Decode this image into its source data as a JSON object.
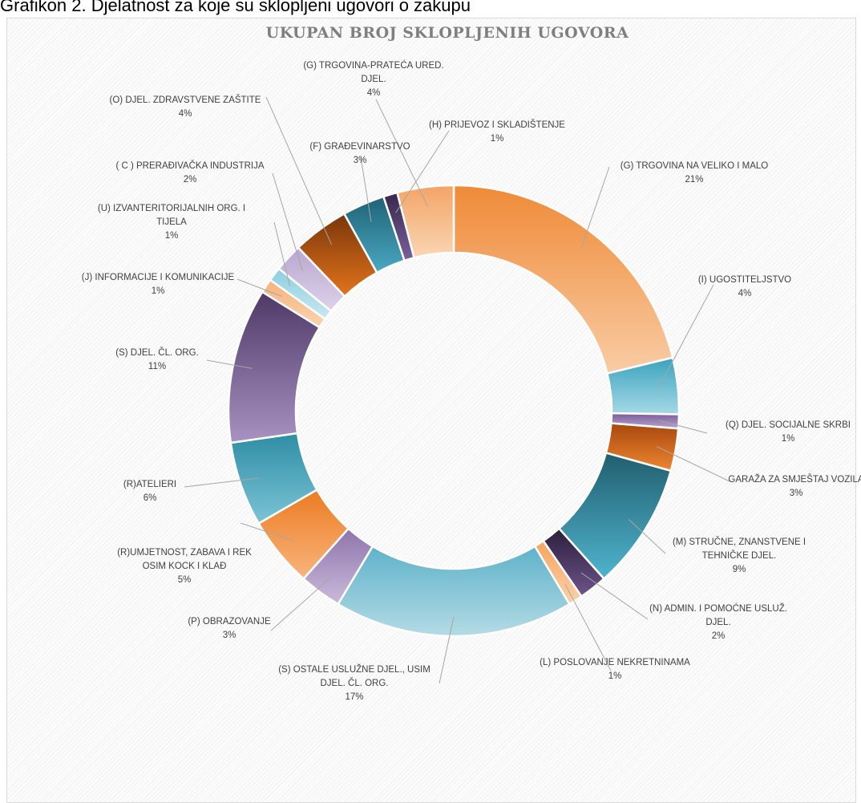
{
  "caption": "Grafikon 2. Djelatnost za koje su sklopljeni ugovori o zakupu",
  "chart_data": {
    "type": "pie",
    "variant": "donut",
    "title": "UKUPAN BROJ SKLOPLJENIH UGOVORA",
    "legend": "none",
    "slices": [
      {
        "label": [
          "(G) TRGOVINA NA VELIKO I MALO"
        ],
        "pct_label": "21%",
        "value": 21,
        "color_top": "#ef8a38",
        "color_bottom": "#f9cca4"
      },
      {
        "label": [
          "(I) UGOSTITELJSTVO"
        ],
        "pct_label": "4%",
        "value": 4,
        "color_top": "#3aa3bd",
        "color_bottom": "#a6d8e6"
      },
      {
        "label": [
          "(Q) DJEL. SOCIJALNE SKRBI"
        ],
        "pct_label": "1%",
        "value": 1,
        "color_top": "#7a5b98",
        "color_bottom": "#b8a3cc"
      },
      {
        "label": [
          "GARAŽA ZA SMJEŠTAJ VOZILA"
        ],
        "pct_label": "3%",
        "value": 3,
        "color_top": "#a8470e",
        "color_bottom": "#ee8630"
      },
      {
        "label": [
          "(M) STRUČNE, ZNANSTVENE I",
          "TEHNIČKE DJEL."
        ],
        "pct_label": "9%",
        "value": 9,
        "color_top": "#215e6e",
        "color_bottom": "#4fb4cf"
      },
      {
        "label": [
          "(N) ADMIN. I POMOĆNE USLUŽ.",
          "DJEL."
        ],
        "pct_label": "2%",
        "value": 2,
        "color_top": "#2c1f3c",
        "color_bottom": "#6d548a"
      },
      {
        "label": [
          "(L) POSLOVANJE NEKRETNINAMA"
        ],
        "pct_label": "1%",
        "value": 1,
        "color_top": "#f5a45e",
        "color_bottom": "#fbd1aa"
      },
      {
        "label": [
          "(S) OSTALE USLUŽNE DJEL., USIM",
          "DJEL. ČL. ORG."
        ],
        "pct_label": "17%",
        "value": 17,
        "color_top": "#5fb2c9",
        "color_bottom": "#b4dbe6"
      },
      {
        "label": [
          "(P) OBRAZOVANJE"
        ],
        "pct_label": "3%",
        "value": 3,
        "color_top": "#8d74ab",
        "color_bottom": "#cbbadb"
      },
      {
        "label": [
          "(R)UMJETNOST, ZABAVA I REK",
          "OSIM KOCK I KLAĐ"
        ],
        "pct_label": "5%",
        "value": 5,
        "color_top": "#ec7b22",
        "color_bottom": "#f8b57d"
      },
      {
        "label": [
          "(R)ATELIERI"
        ],
        "pct_label": "6%",
        "value": 6,
        "color_top": "#2e8da4",
        "color_bottom": "#7cc4d6"
      },
      {
        "label": [
          "(S) DJEL. ČL. ORG."
        ],
        "pct_label": "11%",
        "value": 11,
        "color_top": "#4d3866",
        "color_bottom": "#a892c2"
      },
      {
        "label": [
          "(J) INFORMACIJE I KOMUNIKACIJE"
        ],
        "pct_label": "1%",
        "value": 1,
        "color_top": "#f6b27a",
        "color_bottom": "#fbd3ae"
      },
      {
        "label": [
          "(U) IZVANTERITORIJALNIH ORG. I",
          "TIJELA"
        ],
        "pct_label": "1%",
        "value": 1,
        "color_top": "#8ccfe0",
        "color_bottom": "#c9e8f0"
      },
      {
        "label": [
          "( C ) PRERAĐIVAČKA INDUSTRIJA"
        ],
        "pct_label": "2%",
        "value": 2,
        "color_top": "#b9a6cf",
        "color_bottom": "#ddd2ea"
      },
      {
        "label": [
          "(O) DJEL. ZDRAVSTVENE ZAŠTITE"
        ],
        "pct_label": "4%",
        "value": 4,
        "color_top": "#7a3609",
        "color_bottom": "#e2741d"
      },
      {
        "label": [
          "(F) GRAĐEVINARSTVO"
        ],
        "pct_label": "3%",
        "value": 3,
        "color_top": "#1f6275",
        "color_bottom": "#4aa8c2"
      },
      {
        "label": [
          "(H) PRIJEVOZ I SKLADIŠTENJE"
        ],
        "pct_label": "1%",
        "value": 1,
        "color_top": "#37264d",
        "color_bottom": "#7a619a"
      },
      {
        "label": [
          "(G) TRGOVINA-PRATEĆA URED.",
          "DJEL."
        ],
        "pct_label": "4%",
        "value": 4,
        "color_top": "#f4a466",
        "color_bottom": "#fad6b4"
      }
    ]
  }
}
